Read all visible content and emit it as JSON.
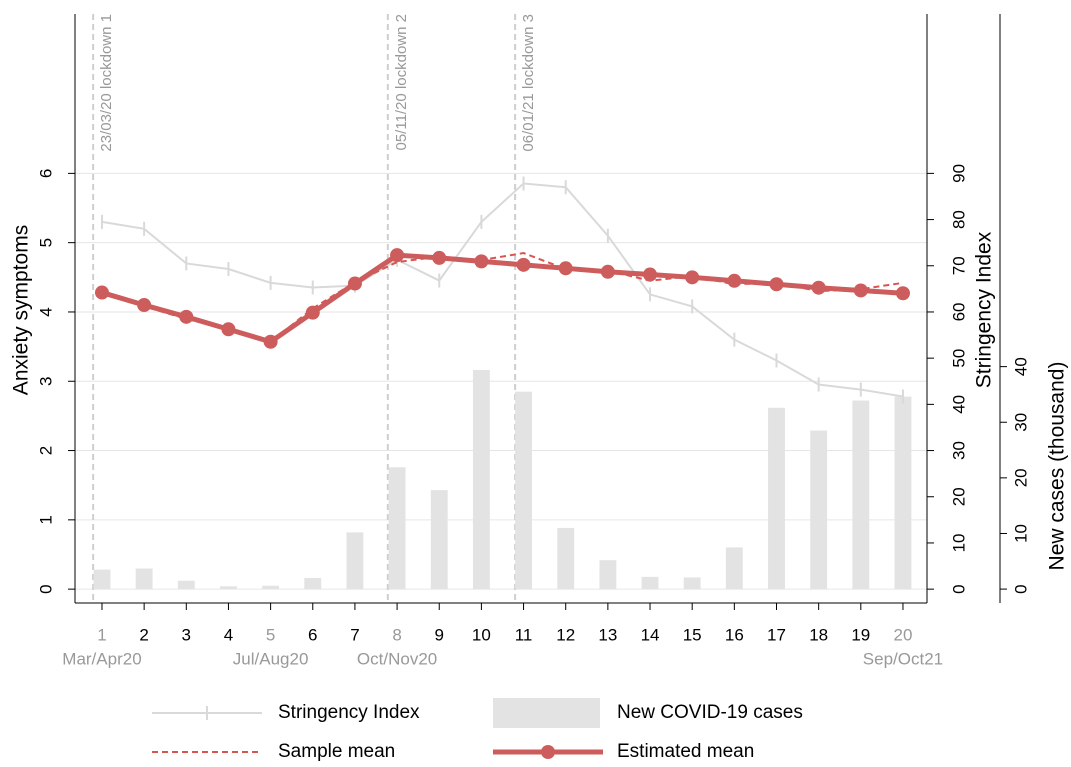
{
  "chart_data": {
    "type": "line",
    "x": [
      1,
      2,
      3,
      4,
      5,
      6,
      7,
      8,
      9,
      10,
      11,
      12,
      13,
      14,
      15,
      16,
      17,
      18,
      19,
      20
    ],
    "xlim": [
      0.36,
      20.57
    ],
    "xticks": [
      1,
      2,
      3,
      4,
      5,
      6,
      7,
      8,
      9,
      10,
      11,
      12,
      13,
      14,
      15,
      16,
      17,
      18,
      19,
      20
    ],
    "period_labels": [
      {
        "x": 1,
        "label": "Mar/Apr20"
      },
      {
        "x": 5,
        "label": "Jul/Aug20"
      },
      {
        "x": 8,
        "label": "Oct/Nov20"
      },
      {
        "x": 20,
        "label": "Sep/Oct21"
      }
    ],
    "annotations": [
      {
        "x": 0.79,
        "label": "23/03/20 lockdown 1"
      },
      {
        "x": 7.78,
        "label": "05/11/20 lockdown 2"
      },
      {
        "x": 10.8,
        "label": "06/01/21 lockdown 3"
      }
    ],
    "ylabel": "Anxiety symptoms",
    "ylim": [
      -0.2,
      8.3
    ],
    "yticks": [
      0,
      1,
      2,
      3,
      4,
      5,
      6
    ],
    "y2label": "Stringency Index",
    "y2lim": [
      -3,
      124.5
    ],
    "y2ticks": [
      0,
      10,
      20,
      30,
      40,
      50,
      60,
      70,
      80,
      90
    ],
    "y3label": "New cases (thousand)",
    "y3lim": [
      -2.5,
      103.4
    ],
    "y3ticks": [
      0,
      10,
      20,
      30,
      40
    ],
    "grid": true,
    "legend": "bottom",
    "series": [
      {
        "name": "Stringency Index",
        "color": "#d9d9d9",
        "axis": "y2",
        "style": "plus",
        "values": [
          79.5,
          78,
          70.5,
          69.3,
          66.3,
          65.3,
          65.7,
          71.3,
          66.8,
          79.5,
          87.8,
          87,
          76.5,
          63.8,
          61.2,
          54,
          49.5,
          44.3,
          43.2,
          41.7
        ]
      },
      {
        "name": "New COVID-19 cases",
        "color": "#e3e3e3",
        "axis": "y3",
        "style": "bar",
        "values": [
          3.5,
          3.7,
          1.5,
          0.5,
          0.6,
          2.0,
          10.2,
          21.9,
          17.8,
          39.4,
          35.5,
          11.0,
          5.2,
          2.2,
          2.1,
          7.5,
          32.6,
          28.5,
          33.9,
          34.6
        ]
      },
      {
        "name": "Sample mean",
        "color": "#d9534f",
        "axis": "y",
        "style": "dashed",
        "values": [
          4.3,
          4.08,
          3.9,
          3.75,
          3.57,
          4.05,
          4.43,
          4.72,
          4.8,
          4.75,
          4.85,
          4.62,
          4.6,
          4.45,
          4.52,
          4.4,
          4.42,
          4.3,
          4.33,
          4.42
        ]
      },
      {
        "name": "Estimated mean",
        "color": "#cd5c5c",
        "axis": "y",
        "style": "marker",
        "values": [
          4.28,
          4.1,
          3.93,
          3.75,
          3.57,
          3.99,
          4.41,
          4.82,
          4.78,
          4.73,
          4.68,
          4.63,
          4.58,
          4.54,
          4.5,
          4.45,
          4.4,
          4.35,
          4.31,
          4.27
        ]
      }
    ]
  }
}
